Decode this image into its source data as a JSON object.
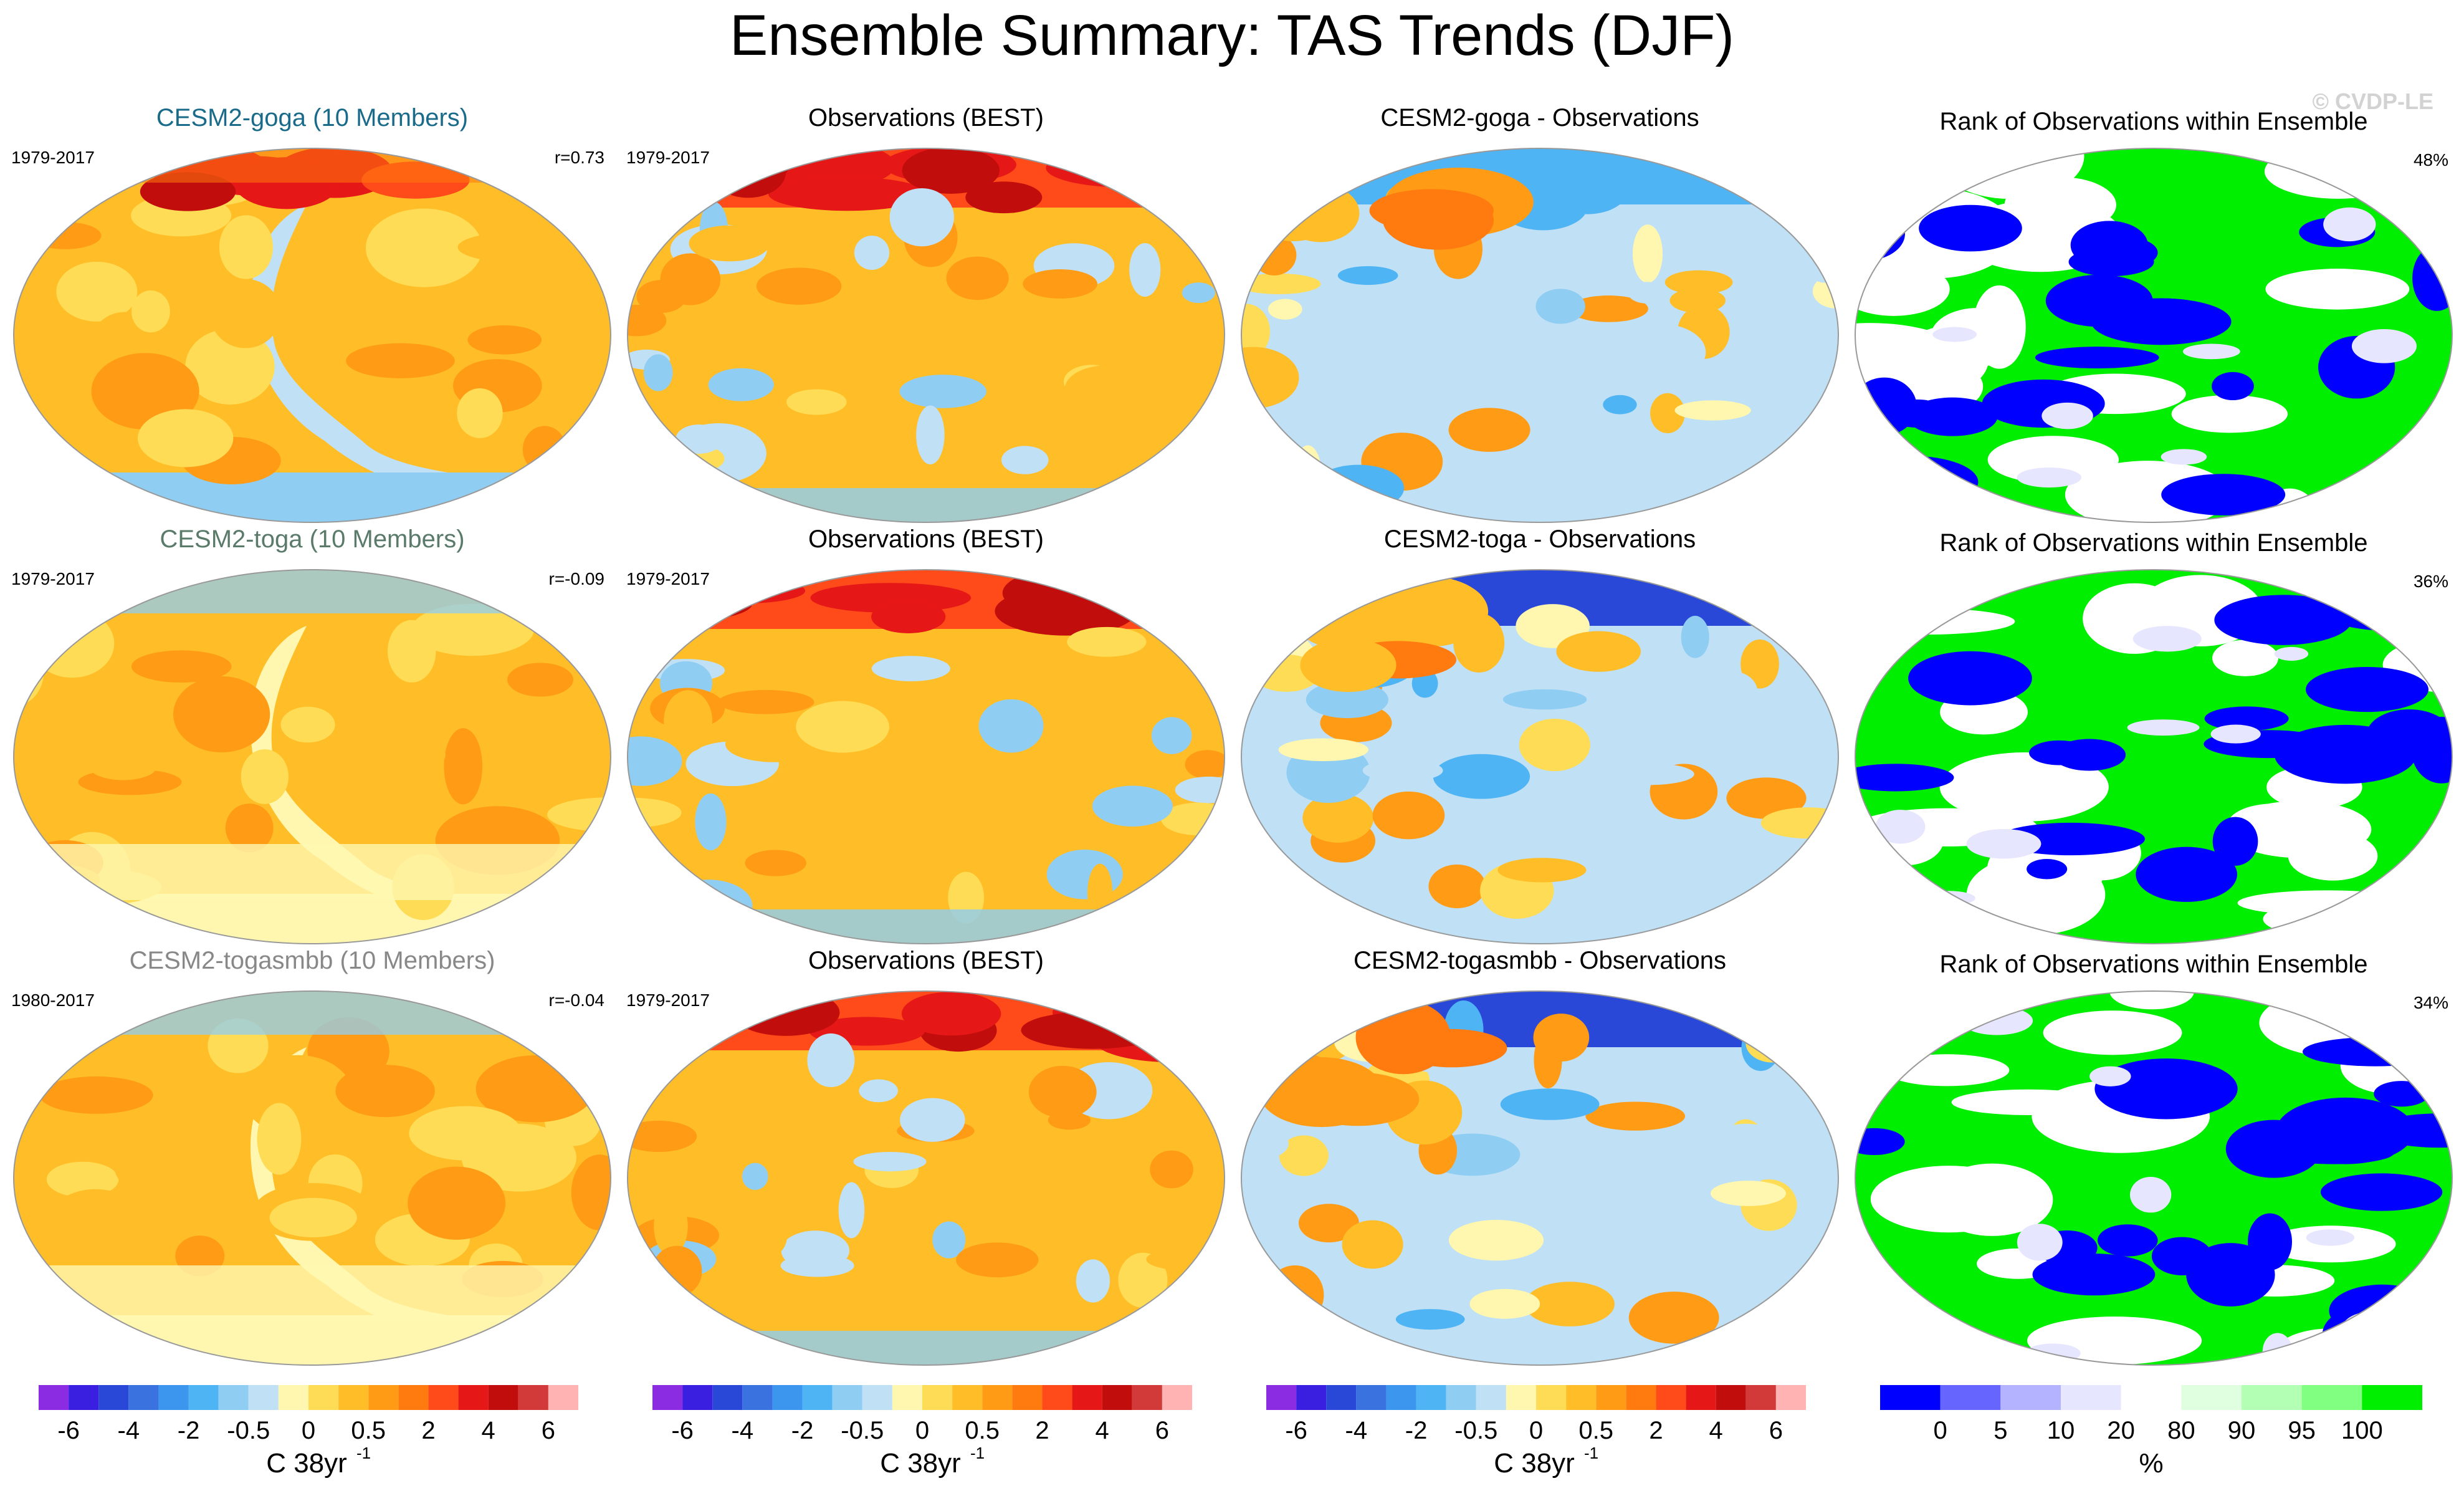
{
  "chart_data": {
    "type": "map-panels",
    "title": "Ensemble Summary: TAS Trends (DJF)",
    "watermark": "© CVDP-LE",
    "colors": {
      "trend_scale": [
        "#8b2be2",
        "#3b1fe0",
        "#2a48d8",
        "#3a72e0",
        "#3d96ee",
        "#4fb4f4",
        "#8fcdf2",
        "#bfe0f5",
        "#fff7b0",
        "#ffdc55",
        "#ffbd28",
        "#ff9b14",
        "#ff7a0f",
        "#ff4a1a",
        "#e61717",
        "#c20d0d",
        "#d23a3a",
        "#ffb3b3"
      ],
      "rank_scale": [
        "#0000ff",
        "#6666ff",
        "#b3b3ff",
        "#e6e6ff",
        "#ffffff",
        "#e0ffe0",
        "#b3ffb3",
        "#80ff80",
        "#00ee00"
      ],
      "map_outline": "#999999",
      "title_model_goga": "#1a6b8a",
      "title_model_toga": "#5a7a6a",
      "title_model_togasmbb": "#888888"
    },
    "rows": [
      {
        "model": {
          "title": "CESM2-goga (10 Members)",
          "period": "1979-2017",
          "corr": "r=0.73",
          "pattern": "warm"
        },
        "obs": {
          "title": "Observations (BEST)",
          "period": "1979-2017",
          "pattern": "obs"
        },
        "diff": {
          "title": "CESM2-goga - Observations",
          "pattern": "diff1"
        },
        "rank": {
          "title": "Rank of Observations within Ensemble",
          "pct": "48%",
          "pattern": "rank"
        }
      },
      {
        "model": {
          "title": "CESM2-toga (10 Members)",
          "period": "1979-2017",
          "corr": "r=-0.09",
          "pattern": "warm2"
        },
        "obs": {
          "title": "Observations (BEST)",
          "period": "1979-2017",
          "pattern": "obs"
        },
        "diff": {
          "title": "CESM2-toga - Observations",
          "pattern": "diff2"
        },
        "rank": {
          "title": "Rank of Observations within Ensemble",
          "pct": "36%",
          "pattern": "rank"
        }
      },
      {
        "model": {
          "title": "CESM2-togasmbb (10 Members)",
          "period": "1980-2017",
          "corr": "r=-0.04",
          "pattern": "warm2"
        },
        "obs": {
          "title": "Observations (BEST)",
          "period": "1979-2017",
          "pattern": "obs"
        },
        "diff": {
          "title": "CESM2-togasmbb - Observations",
          "pattern": "diff2"
        },
        "rank": {
          "title": "Rank of Observations within Ensemble",
          "pct": "34%",
          "pattern": "rank"
        }
      }
    ],
    "colorbars": [
      {
        "kind": "trend",
        "ticks": [
          "-6",
          "-4",
          "-2",
          "-0.5",
          "0",
          "0.5",
          "2",
          "4",
          "6"
        ],
        "label": "C 38yr",
        "label_sup": "-1"
      },
      {
        "kind": "trend",
        "ticks": [
          "-6",
          "-4",
          "-2",
          "-0.5",
          "0",
          "0.5",
          "2",
          "4",
          "6"
        ],
        "label": "C 38yr",
        "label_sup": "-1"
      },
      {
        "kind": "trend",
        "ticks": [
          "-6",
          "-4",
          "-2",
          "-0.5",
          "0",
          "0.5",
          "2",
          "4",
          "6"
        ],
        "label": "C 38yr",
        "label_sup": "-1"
      },
      {
        "kind": "rank",
        "ticks": [
          "0",
          "5",
          "10",
          "20",
          "80",
          "90",
          "95",
          "100"
        ],
        "label": "%",
        "label_sup": ""
      }
    ]
  }
}
